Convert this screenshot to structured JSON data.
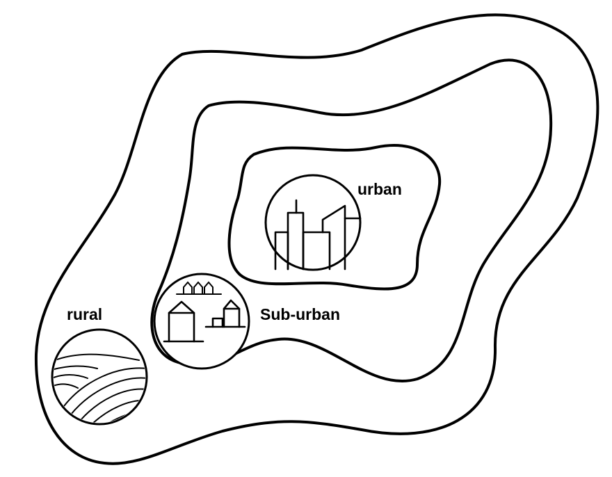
{
  "zones": [
    {
      "id": "rural",
      "label": "rural"
    },
    {
      "id": "suburban",
      "label": "Sub-urban"
    },
    {
      "id": "urban",
      "label": "urban"
    }
  ],
  "icons": {
    "urban": "city-skyline-icon",
    "suburban": "houses-icon",
    "rural": "farm-fields-icon"
  },
  "colors": {
    "stroke": "#000000",
    "background": "#ffffff"
  }
}
